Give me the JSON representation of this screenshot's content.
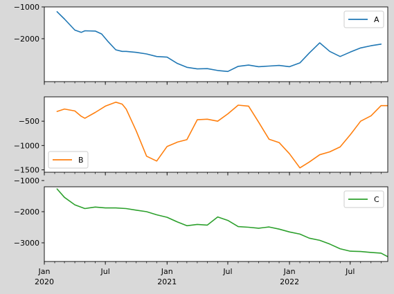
{
  "chart_data": [
    {
      "type": "line",
      "series": [
        {
          "name": "A",
          "color": "#1f77b4",
          "x": [
            "2020-02-08",
            "2020-03-01",
            "2020-04-01",
            "2020-04-20",
            "2020-05-01",
            "2020-06-01",
            "2020-06-20",
            "2020-07-10",
            "2020-08-01",
            "2020-08-20",
            "2020-09-01",
            "2020-10-01",
            "2020-11-01",
            "2020-12-01",
            "2021-01-01",
            "2021-02-01",
            "2021-03-01",
            "2021-04-01",
            "2021-05-01",
            "2021-06-01",
            "2021-07-01",
            "2021-08-01",
            "2021-09-01",
            "2021-10-01",
            "2021-11-01",
            "2021-12-01",
            "2022-01-01",
            "2022-02-01",
            "2022-03-01",
            "2022-04-01",
            "2022-05-01",
            "2022-06-01",
            "2022-07-01",
            "2022-08-01",
            "2022-09-01",
            "2022-10-01"
          ],
          "values": [
            -1150,
            -1380,
            -1730,
            -1800,
            -1750,
            -1760,
            -1850,
            -2100,
            -2350,
            -2400,
            -2400,
            -2430,
            -2480,
            -2560,
            -2580,
            -2780,
            -2900,
            -2950,
            -2940,
            -3000,
            -3030,
            -2870,
            -2830,
            -2880,
            -2860,
            -2840,
            -2880,
            -2760,
            -2450,
            -2130,
            -2400,
            -2560,
            -2420,
            -2290,
            -2220,
            -2170
          ]
        }
      ],
      "yticks": [
        -2000,
        -1000
      ],
      "ytick_labels": [
        "−2000",
        "−1000"
      ],
      "ylim": [
        -3350,
        -1000
      ],
      "legend": "top-right",
      "xlim": [
        "2020-01-01",
        "2022-10-21"
      ]
    },
    {
      "type": "line",
      "series": [
        {
          "name": "B",
          "color": "#ff7f0e",
          "x": [
            "2020-02-08",
            "2020-03-01",
            "2020-04-01",
            "2020-04-20",
            "2020-05-01",
            "2020-06-01",
            "2020-07-01",
            "2020-08-01",
            "2020-08-20",
            "2020-09-01",
            "2020-10-01",
            "2020-11-01",
            "2020-12-01",
            "2021-01-01",
            "2021-02-01",
            "2021-03-01",
            "2021-04-01",
            "2021-05-01",
            "2021-06-01",
            "2021-07-01",
            "2021-08-01",
            "2021-09-01",
            "2021-10-01",
            "2021-11-01",
            "2021-12-01",
            "2022-01-01",
            "2022-02-01",
            "2022-03-01",
            "2022-04-01",
            "2022-05-01",
            "2022-06-01",
            "2022-07-01",
            "2022-08-01",
            "2022-09-01",
            "2022-10-01",
            "2022-10-20"
          ],
          "values": [
            -300,
            -250,
            -290,
            -400,
            -440,
            -320,
            -190,
            -110,
            -150,
            -250,
            -700,
            -1220,
            -1320,
            -1020,
            -930,
            -880,
            -470,
            -460,
            -500,
            -350,
            -170,
            -190,
            -520,
            -870,
            -940,
            -1170,
            -1460,
            -1340,
            -1190,
            -1130,
            -1030,
            -780,
            -500,
            -390,
            -180,
            -180
          ]
        }
      ],
      "yticks": [
        -1500,
        -1000,
        -500
      ],
      "ytick_labels": [
        "−1500",
        "−1000",
        "−500"
      ],
      "ylim": [
        -1550,
        0
      ],
      "legend": "bottom-left",
      "xlim": [
        "2020-01-01",
        "2022-10-21"
      ]
    },
    {
      "type": "line",
      "series": [
        {
          "name": "C",
          "color": "#2ca02c",
          "x": [
            "2020-02-08",
            "2020-03-01",
            "2020-04-01",
            "2020-05-01",
            "2020-06-01",
            "2020-07-01",
            "2020-08-01",
            "2020-09-01",
            "2020-10-01",
            "2020-11-01",
            "2020-12-01",
            "2021-01-01",
            "2021-02-01",
            "2021-03-01",
            "2021-04-01",
            "2021-05-01",
            "2021-06-01",
            "2021-07-01",
            "2021-08-01",
            "2021-09-01",
            "2021-10-01",
            "2021-11-01",
            "2021-12-01",
            "2022-01-01",
            "2022-02-01",
            "2022-03-01",
            "2022-04-01",
            "2022-05-01",
            "2022-06-01",
            "2022-07-01",
            "2022-08-01",
            "2022-09-01",
            "2022-10-01",
            "2022-10-20"
          ],
          "values": [
            -1270,
            -1540,
            -1780,
            -1900,
            -1850,
            -1880,
            -1880,
            -1900,
            -1950,
            -2000,
            -2100,
            -2180,
            -2330,
            -2450,
            -2410,
            -2430,
            -2170,
            -2280,
            -2480,
            -2500,
            -2530,
            -2490,
            -2560,
            -2650,
            -2720,
            -2850,
            -2920,
            -3040,
            -3190,
            -3270,
            -3280,
            -3310,
            -3330,
            -3440
          ]
        }
      ],
      "yticks": [
        -3000,
        -2000,
        -1000
      ],
      "ytick_labels": [
        "−3000",
        "−2000",
        "−1000"
      ],
      "ylim": [
        -3600,
        -1200
      ],
      "legend": "top-right",
      "xlim": [
        "2020-01-01",
        "2022-10-21"
      ]
    }
  ],
  "xaxis": {
    "ticks": [
      {
        "date": "2020-01-01",
        "line1": "Jan",
        "line2": "2020"
      },
      {
        "date": "2020-07-01",
        "line1": "Jul",
        "line2": ""
      },
      {
        "date": "2021-01-01",
        "line1": "Jan",
        "line2": "2021"
      },
      {
        "date": "2021-07-01",
        "line1": "Jul",
        "line2": ""
      },
      {
        "date": "2022-01-01",
        "line1": "Jan",
        "line2": "2022"
      },
      {
        "date": "2022-07-01",
        "line1": "Jul",
        "line2": ""
      }
    ]
  }
}
